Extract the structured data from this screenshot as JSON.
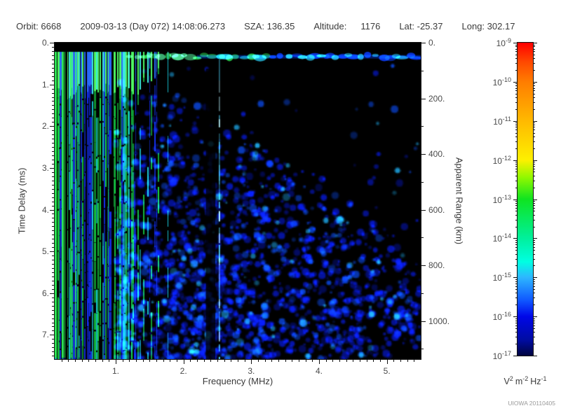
{
  "header": {
    "orbit_label": "Orbit:",
    "orbit_value": "6668",
    "datetime": "2009-03-13 (Day 072) 14:08:06.273",
    "sza_label": "SZA:",
    "sza_value": "136.35",
    "altitude_label": "Altitude:",
    "altitude_value": "1176",
    "lat_label": "Lat:",
    "lat_value": "-25.37",
    "long_label": "Long:",
    "long_value": "302.17"
  },
  "watermark": "UIOWA 20110405",
  "chart_data": {
    "type": "heatmap",
    "subtype": "radar-ionogram-spectrogram",
    "x_axis": {
      "label": "Frequency (MHz)",
      "range": [
        0.1,
        5.5
      ],
      "major_ticks": [
        {
          "value": 1,
          "label": "1."
        },
        {
          "value": 2,
          "label": "2."
        },
        {
          "value": 3,
          "label": "3."
        },
        {
          "value": 4,
          "label": "4."
        },
        {
          "value": 5,
          "label": "5."
        }
      ],
      "minor_step": 0.1
    },
    "y_axis": {
      "label": "Time Delay (ms)",
      "range": [
        0,
        7.58
      ],
      "major_ticks": [
        {
          "value": 0,
          "label": "0."
        },
        {
          "value": 1,
          "label": "1."
        },
        {
          "value": 2,
          "label": "2."
        },
        {
          "value": 3,
          "label": "3."
        },
        {
          "value": 4,
          "label": "4."
        },
        {
          "value": 5,
          "label": "5."
        },
        {
          "value": 6,
          "label": "6."
        },
        {
          "value": 7,
          "label": "7."
        }
      ],
      "minor_step": 0.1
    },
    "y2_axis": {
      "label": "Apparent Range (km)",
      "range": [
        0,
        1137
      ],
      "major_ticks": [
        {
          "value": 0,
          "label": "0."
        },
        {
          "value": 200,
          "label": "200."
        },
        {
          "value": 400,
          "label": "400."
        },
        {
          "value": 600,
          "label": "600."
        },
        {
          "value": 800,
          "label": "800."
        },
        {
          "value": 1000,
          "label": "1000."
        }
      ],
      "minor_step": 100
    },
    "colorbar": {
      "base": "10",
      "top_exponent": -9,
      "bottom_exponent": -17,
      "exponents": [
        "-9",
        "-10",
        "-11",
        "-12",
        "-13",
        "-14",
        "-15",
        "-16",
        "-17"
      ],
      "unit": {
        "v_base": "V",
        "v_exp": "2",
        "m_base": "m",
        "m_exp": "-2",
        "hz_base": "Hz",
        "hz_exp": "-1"
      },
      "gradient_stops": [
        [
          -9,
          "#ff0000"
        ],
        [
          -9.5,
          "#ff4a00"
        ],
        [
          -10,
          "#ff7d00"
        ],
        [
          -11,
          "#ffb900"
        ],
        [
          -12,
          "#fdf000"
        ],
        [
          -12.45,
          "#90f800"
        ],
        [
          -13,
          "#0fe420"
        ],
        [
          -14,
          "#00f09c"
        ],
        [
          -14.6,
          "#00ffe2"
        ],
        [
          -15,
          "#2db6ff"
        ],
        [
          -15.6,
          "#0f55ff"
        ],
        [
          -16,
          "#0007e8"
        ],
        [
          -16.6,
          "#000ca2"
        ],
        [
          -17,
          "#000440"
        ]
      ]
    },
    "features": {
      "background": "#000000",
      "receiver_gap_delay": 0.22,
      "stripes": {
        "freq_start": 0.1,
        "dense_until": 1.25,
        "freq_end": 1.85,
        "bright_top_delay": 1.15,
        "full_green_until": 0.45,
        "colors": {
          "green": "#17d947",
          "cyan": "#19c9d9",
          "blue": "#1430f0",
          "green_bright": "#4ef763",
          "cyan_bright": "#3ce9e0",
          "blue_bright": "#2a6af8"
        }
      },
      "surface_band": {
        "delay": 0.33,
        "blob_start_freq": 1.2,
        "green_until": 2.45,
        "teal_until": 3.3,
        "colors": {
          "green": "#2ade52",
          "green_light": "#55f2a0",
          "teal": "#20d8c0",
          "cyan": "#26c3e8",
          "blue": "#0a38e8",
          "base_line": "#0633cc"
        }
      },
      "speckle": {
        "start_freq": 1.1,
        "start_delay": 0.55,
        "boundary_from": [
          1.9,
          0.75
        ],
        "boundary_to": [
          5.5,
          5.0
        ],
        "colors": [
          "#0617c4",
          "#0b49e8",
          "#1fb0f5"
        ]
      },
      "dark_lane": {
        "freq_range": [
          2.33,
          2.47
        ],
        "start_delay": 0.62
      },
      "interference_line": {
        "freq": 2.53,
        "start_delay": 0.4,
        "colors": [
          "#4fd6ff",
          "#b8f4ff"
        ]
      }
    }
  }
}
